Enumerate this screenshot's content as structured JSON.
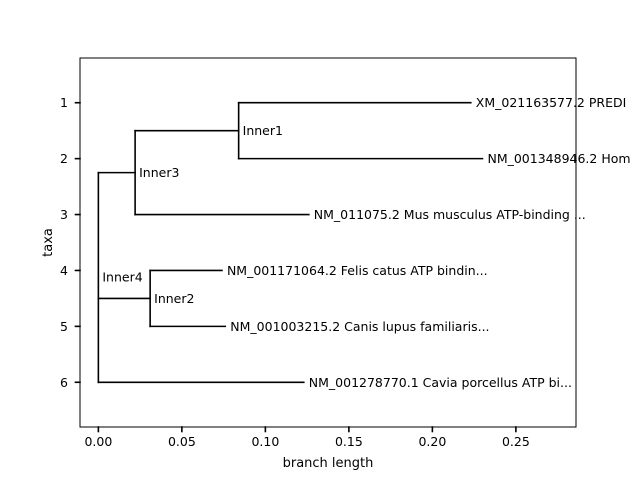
{
  "chart_data": {
    "type": "phylogenetic-tree",
    "xlabel": "branch length",
    "ylabel": "taxa",
    "xlim": [
      -0.011,
      0.286
    ],
    "ylim": [
      6.8,
      0.2
    ],
    "x_ticks": [
      0.0,
      0.05,
      0.1,
      0.15,
      0.2,
      0.25
    ],
    "x_tick_labels": [
      "0.00",
      "0.05",
      "0.10",
      "0.15",
      "0.20",
      "0.25"
    ],
    "y_ticks": [
      1,
      2,
      3,
      4,
      5,
      6
    ],
    "y_tick_labels": [
      "1",
      "2",
      "3",
      "4",
      "5",
      "6"
    ],
    "grid": false,
    "line_color": "#000000",
    "leaves": [
      {
        "label": "XM_021163577.2 PREDI",
        "x": 0.223,
        "y": 1,
        "parent_x": 0.084
      },
      {
        "label": "NM_001348946.2 Hom",
        "x": 0.23,
        "y": 2,
        "parent_x": 0.084
      },
      {
        "label": "NM_011075.2 Mus musculus ATP-binding ...",
        "x": 0.126,
        "y": 3,
        "parent_x": 0.022
      },
      {
        "label": "NM_001171064.2 Felis catus ATP bindin...",
        "x": 0.074,
        "y": 4,
        "parent_x": 0.031
      },
      {
        "label": "NM_001003215.2 Canis lupus familiaris...",
        "x": 0.076,
        "y": 5,
        "parent_x": 0.031
      },
      {
        "label": "NM_001278770.1 Cavia porcellus ATP bi...",
        "x": 0.123,
        "y": 6,
        "parent_x": 0.0
      }
    ],
    "internal_nodes": [
      {
        "label": "Inner1",
        "x": 0.084,
        "y": 1.5,
        "y_min": 1,
        "y_max": 2,
        "parent_x": 0.022
      },
      {
        "label": "Inner3",
        "x": 0.022,
        "y": 2.25,
        "y_min": 1.5,
        "y_max": 3,
        "parent_x": 0.0
      },
      {
        "label": "Inner2",
        "x": 0.031,
        "y": 4.5,
        "y_min": 4,
        "y_max": 5,
        "parent_x": 0.0
      },
      {
        "label": "Inner4",
        "x": 0.0,
        "y": 4.5,
        "y_min": 2.25,
        "y_max": 6,
        "parent_x": null
      }
    ]
  }
}
